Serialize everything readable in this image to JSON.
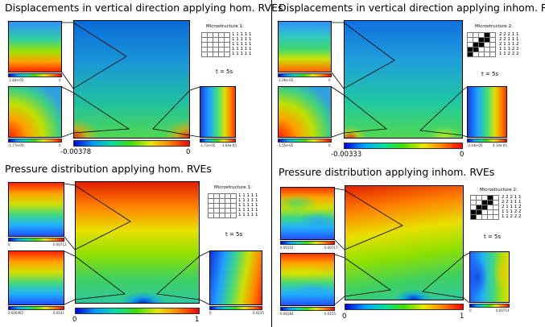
{
  "panels": {
    "tl": {
      "title": "Displacements in vertical direction applying hom. RVEs",
      "micro_label": "Microstructure 1:",
      "grid": [
        "",
        "",
        "",
        "",
        "",
        "",
        "",
        "",
        "",
        "",
        "",
        "",
        "",
        "",
        "",
        "",
        "",
        "",
        "",
        "",
        "",
        "",
        "",
        "",
        ""
      ],
      "matrix": [
        "1 1 1 1 1",
        "1 1 1 1 1",
        "1 1 1 1 1",
        "1 1 1 1 1",
        "1 1 1 1 1"
      ],
      "time": "t = 5s",
      "main_min": "-0.00378",
      "main_max": "0",
      "rve_top_min": "-1.84e-05",
      "rve_top_max": "0",
      "rve_bl_min": "-1.77e-05",
      "rve_bl_max": "0",
      "rve_br_min": "-1.71e-05",
      "rve_br_max": "3.64e-05"
    },
    "tr": {
      "title": "Displacements in vertical direction applying inhom. RVEs",
      "micro_label": "Microstructure 2:",
      "grid": [
        "",
        "",
        "",
        "b",
        "",
        "",
        "",
        "b",
        "b",
        "",
        "",
        "b",
        "b",
        "",
        "",
        "b",
        "b",
        "",
        "",
        "",
        "b",
        "",
        "",
        "",
        ""
      ],
      "matrix": [
        "2 2 2 1 1",
        "2 2 1 1 1",
        "2 1 1 1 2",
        "1 1 1 2 2",
        "1 1 2 2 2"
      ],
      "time": "t = 5s",
      "main_min": "-0.00333",
      "main_max": "0",
      "rve_top_min": "-1.06e-05",
      "rve_top_max": "0",
      "rve_bl_min": "-1.55e-05",
      "rve_bl_max": "0",
      "rve_br_min": "-2.44e-05",
      "rve_br_max": "4.14e-05"
    },
    "bl": {
      "title": "Pressure distribution applying hom. RVEs",
      "micro_label": "Microstructure 1:",
      "grid": [
        "",
        "",
        "",
        "",
        "",
        "",
        "",
        "",
        "",
        "",
        "",
        "",
        "",
        "",
        "",
        "",
        "",
        "",
        "",
        "",
        "",
        "",
        "",
        "",
        ""
      ],
      "matrix": [
        "1 1 1 1 1",
        "1 1 1 1 1",
        "1 1 1 1 1",
        "1 1 1 1 1",
        "1 1 1 1 1"
      ],
      "time": "t = 5s",
      "main_min": "0",
      "main_max": "1",
      "rve_top_min": "0",
      "rve_top_max": "0.00712",
      "rve_bl_min": "0.000465",
      "rve_bl_max": "0.0141",
      "rve_br_min": "0",
      "rve_br_max": "0.0135"
    },
    "br": {
      "title": "Pressure distribution applying inhom. RVEs",
      "micro_label": "Microstructure 2:",
      "grid": [
        "",
        "",
        "",
        "b",
        "",
        "",
        "",
        "b",
        "b",
        "",
        "",
        "b",
        "b",
        "",
        "",
        "b",
        "b",
        "",
        "",
        "",
        "b",
        "",
        "",
        "",
        ""
      ],
      "matrix": [
        "2 2 2 1 1",
        "2 2 1 1 1",
        "2 1 1 1 2",
        "1 1 1 2 2",
        "1 1 2 2 2"
      ],
      "time": "t = 5s",
      "main_min": "0",
      "main_max": "1",
      "rve_top_min": "0.00116",
      "rve_top_max": "0.00717",
      "rve_bl_min": "0.00184",
      "rve_bl_max": "0.0155",
      "rve_br_min": "0",
      "rve_br_max": "0.00714"
    }
  }
}
